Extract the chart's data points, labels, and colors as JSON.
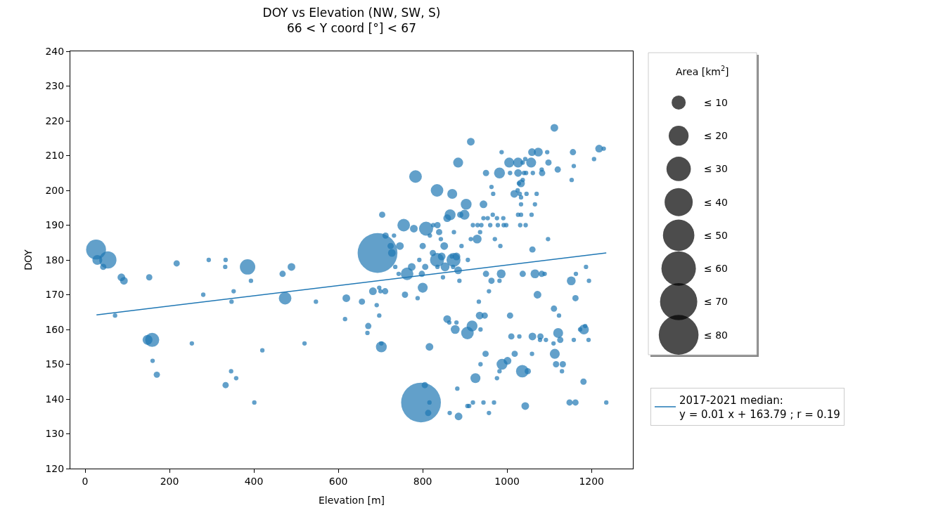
{
  "chart_data": {
    "type": "bubble",
    "title": "DOY vs Elevation (NW, SW, S)\n66 < Y coord [°] < 67",
    "xlabel": "Elevation [m]",
    "ylabel": "DOY",
    "legend_title": "Area [km$^{2}$]",
    "xlim": [
      -35,
      1298
    ],
    "xticks": [
      0,
      200,
      400,
      600,
      800,
      1000,
      1200
    ],
    "ylim": [
      120,
      240
    ],
    "yticks": [
      120,
      130,
      140,
      150,
      160,
      170,
      180,
      190,
      200,
      210,
      220,
      230,
      240
    ],
    "legend": "bottom right",
    "size_legend": [
      {
        "value": 10,
        "label": "≤ 10"
      },
      {
        "value": 20,
        "label": "≤ 20"
      },
      {
        "value": 30,
        "label": "≤ 30"
      },
      {
        "value": 40,
        "label": "≤ 40"
      },
      {
        "value": 50,
        "label": "≤ 50"
      },
      {
        "value": 60,
        "label": "≤ 60"
      },
      {
        "value": 70,
        "label": "≤ 70"
      },
      {
        "value": 80,
        "label": "≤ 80"
      }
    ],
    "series": [
      {
        "color": "#1f77b4",
        "x": [
          26,
          29,
          54,
          43,
          86,
          92,
          152,
          217,
          293,
          333,
          332,
          385,
          393,
          468,
          489,
          71,
          280,
          352,
          347,
          474,
          547,
          619,
          656,
          616,
          148,
          159,
          160,
          170,
          253,
          420,
          520,
          346,
          358,
          333,
          401,
          1112,
          914,
          1218,
          1229,
          1206,
          987,
          1059,
          1074,
          1095,
          1156,
          1043,
          884,
          1005,
          1026,
          1037,
          1057,
          1098,
          1158,
          783,
          1082,
          1120,
          950,
          982,
          1007,
          1026,
          1040,
          1045,
          1061,
          1083,
          1153,
          1037,
          1028,
          1033,
          963,
          1025,
          834,
          870,
          967,
          1017,
          1030,
          1046,
          1070,
          1033,
          903,
          944,
          1033,
          1066,
          704,
          865,
          858,
          889,
          899,
          966,
          944,
          954,
          976,
          991,
          1026,
          1033,
          1058,
          755,
          779,
          808,
          825,
          835,
          919,
          930,
          939,
          960,
          978,
          992,
          998,
          1031,
          1044,
          712,
          732,
          817,
          839,
          874,
          843,
          936,
          914,
          929,
          971,
          1097,
          724,
          746,
          800,
          851,
          892,
          984,
          693,
          727,
          1060,
          824,
          792,
          845,
          834,
          873,
          880,
          869,
          907,
          735,
          774,
          806,
          835,
          853,
          872,
          884,
          763,
          743,
          798,
          848,
          887,
          950,
          986,
          1037,
          1066,
          1082,
          1089,
          1163,
          1187,
          963,
          982,
          1152,
          1194,
          697,
          800,
          682,
          700,
          711,
          758,
          788,
          957,
          1072,
          1162,
          691,
          697,
          933,
          1111,
          935,
          947,
          1007,
          1123,
          671,
          669,
          858,
          863,
          880,
          917,
          877,
          906,
          937,
          1185,
          1173,
          1182,
          1121,
          1010,
          1029,
          1060,
          1079,
          1078,
          1092,
          1110,
          1126,
          1158,
          1193,
          702,
          702,
          816,
          949,
          1018,
          1059,
          1113,
          937,
          988,
          1001,
          1116,
          1132,
          982,
          1036,
          1049,
          1130,
          976,
          925,
          1181,
          805,
          882,
          796,
          816,
          919,
          944,
          969,
          1148,
          1162,
          1235,
          813,
          864,
          906,
          910,
          1043,
          885,
          957
        ],
        "values": [
          183,
          180,
          180,
          178,
          175,
          174,
          175,
          179,
          180,
          180,
          178,
          178,
          174,
          176,
          178,
          164,
          170,
          171,
          168,
          169,
          168,
          169,
          168,
          163,
          157,
          157,
          151,
          147,
          156,
          154,
          156,
          148,
          146,
          144,
          139,
          218,
          214,
          212,
          212,
          209,
          211,
          211,
          211,
          211,
          211,
          209,
          208,
          208,
          208,
          208,
          208,
          208,
          207,
          204,
          206,
          206,
          205,
          205,
          205,
          205,
          205,
          205,
          205,
          205,
          203,
          203,
          202,
          202,
          201,
          200,
          200,
          199,
          199,
          199,
          199,
          199,
          199,
          198,
          196,
          196,
          196,
          196,
          193,
          193,
          192,
          193,
          193,
          193,
          192,
          192,
          192,
          192,
          193,
          193,
          193,
          190,
          189,
          189,
          190,
          190,
          190,
          190,
          190,
          190,
          190,
          190,
          190,
          190,
          190,
          187,
          187,
          187,
          188,
          188,
          186,
          188,
          186,
          186,
          186,
          186,
          184,
          184,
          184,
          184,
          184,
          184,
          182,
          182,
          183,
          182,
          180,
          181,
          180,
          180,
          181,
          181,
          180,
          178,
          178,
          178,
          178,
          178,
          178,
          177,
          176,
          176,
          176,
          175,
          174,
          176,
          176,
          176,
          176,
          176,
          176,
          176,
          178,
          174,
          174,
          174,
          174,
          172,
          172,
          171,
          171,
          171,
          170,
          169,
          171,
          170,
          169,
          167,
          164,
          168,
          166,
          164,
          164,
          164,
          164,
          161,
          159,
          163,
          162,
          162,
          161,
          160,
          159,
          160,
          161,
          160,
          160,
          159,
          158,
          158,
          158,
          158,
          157,
          157,
          156,
          157,
          157,
          157,
          155,
          156,
          155,
          153,
          153,
          153,
          153,
          150,
          150,
          151,
          150,
          150,
          148,
          148,
          148,
          148,
          146,
          146,
          145,
          144,
          143,
          139,
          139,
          139,
          139,
          139,
          139,
          139,
          139,
          136,
          136,
          138,
          138,
          138,
          135,
          136
        ],
        "sizes": [
          20,
          5,
          15,
          2,
          3,
          3,
          2,
          2,
          1,
          1,
          1,
          12,
          1,
          2,
          3,
          1,
          1,
          1,
          1,
          8,
          1,
          3,
          2,
          1,
          5,
          10,
          1,
          2,
          1,
          1,
          1,
          1,
          1,
          2,
          1,
          3,
          3,
          3,
          1,
          1,
          1,
          3,
          4,
          1,
          2,
          1,
          5,
          5,
          5,
          1,
          5,
          2,
          1,
          8,
          1,
          2,
          2,
          6,
          1,
          3,
          1,
          1,
          1,
          2,
          1,
          1,
          1,
          3,
          1,
          1,
          8,
          5,
          1,
          3,
          1,
          1,
          1,
          1,
          6,
          3,
          1,
          1,
          2,
          6,
          3,
          2,
          5,
          1,
          1,
          1,
          1,
          1,
          1,
          1,
          1,
          8,
          3,
          10,
          1,
          2,
          1,
          1,
          1,
          1,
          1,
          1,
          1,
          1,
          1,
          2,
          1,
          1,
          2,
          1,
          1,
          1,
          1,
          4,
          1,
          1,
          2,
          3,
          2,
          3,
          1,
          1,
          80,
          3,
          2,
          2,
          1,
          3,
          10,
          10,
          3,
          1,
          1,
          1,
          3,
          2,
          1,
          4,
          1,
          3,
          8,
          1,
          2,
          1,
          1,
          2,
          4,
          2,
          4,
          2,
          1,
          1,
          1,
          2,
          1,
          4,
          1,
          1,
          5,
          3,
          1,
          2,
          2,
          1,
          1,
          3,
          2,
          1,
          1,
          1,
          2,
          3,
          2,
          2,
          1,
          2,
          1,
          3,
          1,
          1,
          6,
          4,
          8,
          1,
          1,
          1,
          5,
          5,
          2,
          1,
          3,
          2,
          1,
          1,
          1,
          2,
          1,
          1,
          6,
          1,
          3,
          2,
          2,
          1,
          5,
          1,
          6,
          3,
          2,
          2,
          1,
          8,
          2,
          1,
          1,
          5,
          2,
          2,
          1,
          80,
          1,
          1,
          1,
          1,
          2,
          2,
          1,
          2,
          1,
          1,
          1,
          3,
          3,
          1
        ]
      },
      {
        "type": "line",
        "name": "2017-2021 median:\ny = 0.01 x + 163.79 ; r = 0.19",
        "color": "#1f77b4",
        "line_style": "solid",
        "x": [
          27,
          1235
        ],
        "values": [
          164.2,
          182.0
        ]
      }
    ]
  }
}
